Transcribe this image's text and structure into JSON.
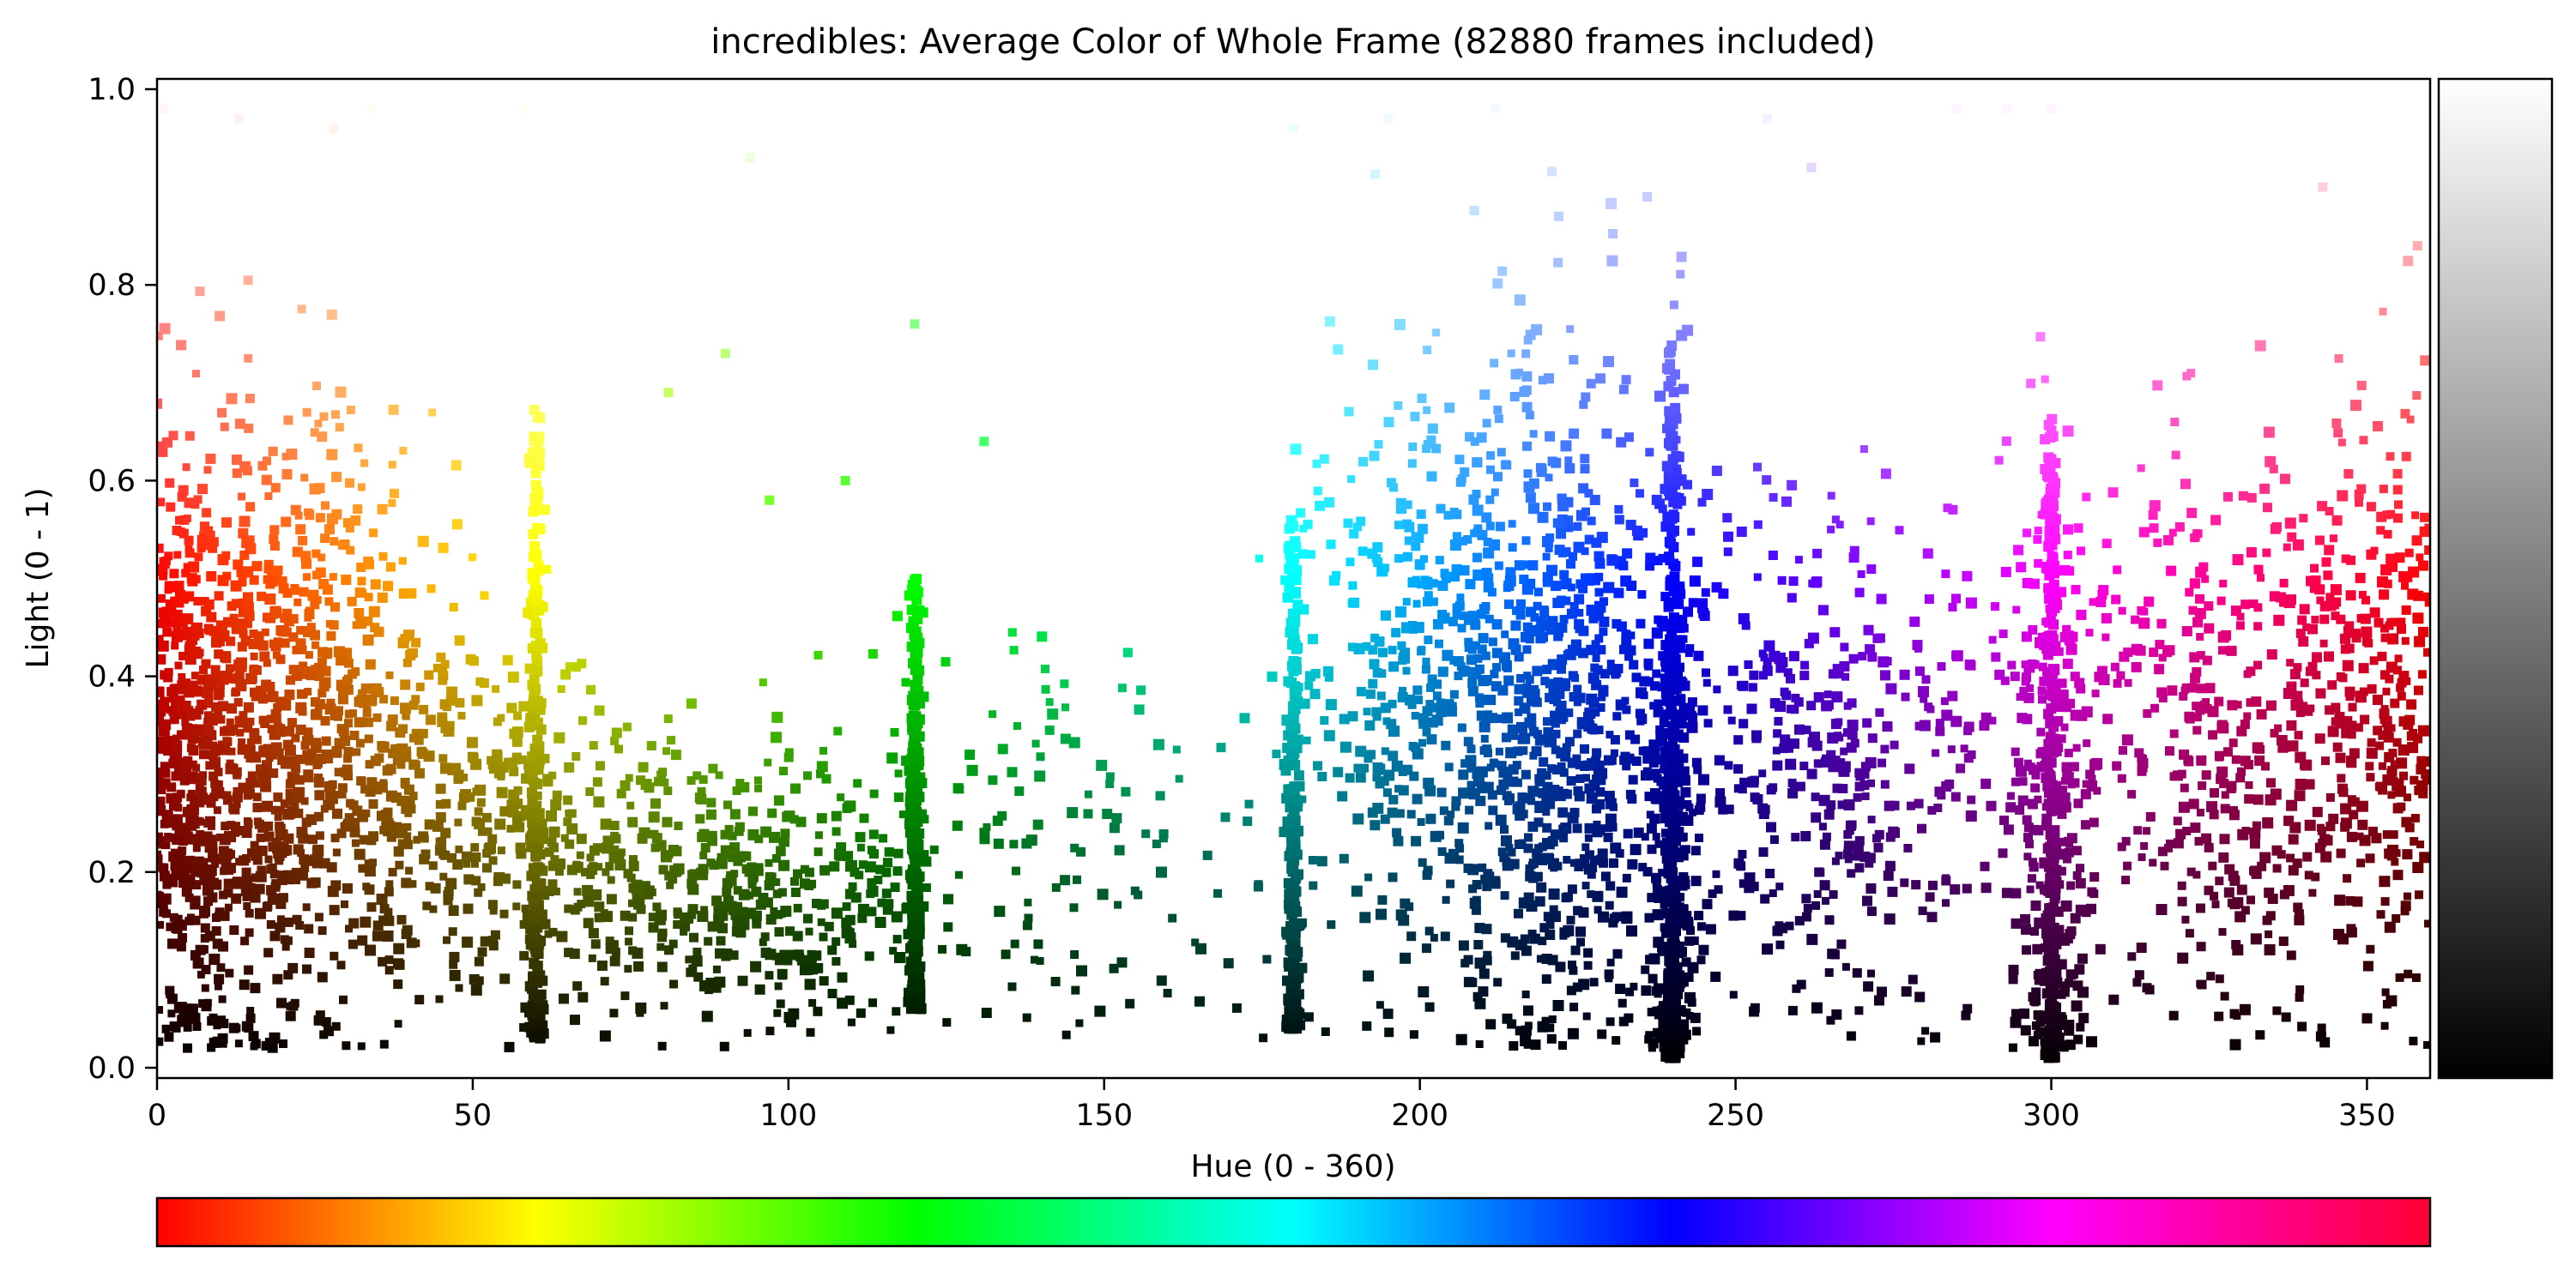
{
  "chart_data": {
    "type": "scatter",
    "title": "incredibles: Average Color of Whole Frame (82880 frames included)",
    "xlabel": "Hue (0 - 360)",
    "ylabel": "Light (0 - 1)",
    "xlim": [
      0,
      360
    ],
    "ylim": [
      0,
      1
    ],
    "xticks": [
      0,
      50,
      100,
      150,
      200,
      250,
      300,
      350
    ],
    "yticks": [
      0.0,
      0.2,
      0.4,
      0.6,
      0.8,
      1.0
    ],
    "ytick_labels": [
      "0.0",
      "0.2",
      "0.4",
      "0.6",
      "0.8",
      "1.0"
    ],
    "grid": false,
    "legend": "none",
    "color_encoding": "point color = average frame color (hue on x, lightness on y)",
    "side_colorbar": "lightness gradient black to white (no tick labels)",
    "bottom_colorbar": "hue spectrum 0 to 360 (no tick labels)",
    "density_clusters": [
      {
        "hue_center": 18,
        "hue_spread": 12,
        "light_center": 0.34,
        "light_spread": 0.16,
        "weight": 20
      },
      {
        "hue_center": 4,
        "hue_spread": 4,
        "light_center": 0.3,
        "light_spread": 0.16,
        "weight": 8
      },
      {
        "hue_center": 45,
        "hue_spread": 12,
        "light_center": 0.28,
        "light_spread": 0.09,
        "weight": 7
      },
      {
        "hue_center": 75,
        "hue_spread": 14,
        "light_center": 0.2,
        "light_spread": 0.07,
        "weight": 6
      },
      {
        "hue_center": 102,
        "hue_spread": 10,
        "light_center": 0.18,
        "light_spread": 0.07,
        "weight": 5
      },
      {
        "hue_center": 140,
        "hue_spread": 18,
        "light_center": 0.22,
        "light_spread": 0.1,
        "weight": 3
      },
      {
        "hue_center": 200,
        "hue_spread": 10,
        "light_center": 0.4,
        "light_spread": 0.15,
        "weight": 8
      },
      {
        "hue_center": 222,
        "hue_spread": 10,
        "light_center": 0.35,
        "light_spread": 0.17,
        "weight": 16
      },
      {
        "hue_center": 240,
        "hue_spread": 2,
        "light_center": 0.25,
        "light_spread": 0.2,
        "weight": 6
      },
      {
        "hue_center": 265,
        "hue_spread": 14,
        "light_center": 0.3,
        "light_spread": 0.13,
        "weight": 9
      },
      {
        "hue_center": 300,
        "hue_spread": 3,
        "light_center": 0.25,
        "light_spread": 0.18,
        "weight": 5
      },
      {
        "hue_center": 330,
        "hue_spread": 18,
        "light_center": 0.33,
        "light_spread": 0.14,
        "weight": 12
      },
      {
        "hue_center": 355,
        "hue_spread": 6,
        "light_center": 0.4,
        "light_spread": 0.16,
        "weight": 5
      }
    ],
    "vertical_streaks": [
      {
        "hue": 60,
        "light_min": 0.03,
        "light_max": 0.68
      },
      {
        "hue": 120,
        "light_min": 0.06,
        "light_max": 0.51
      },
      {
        "hue": 180,
        "light_min": 0.04,
        "light_max": 0.56
      },
      {
        "hue": 240,
        "light_min": 0.01,
        "light_max": 0.74
      },
      {
        "hue": 300,
        "light_min": 0.01,
        "light_max": 0.67
      }
    ],
    "outliers": [
      {
        "x": 13,
        "y": 0.97
      },
      {
        "x": 28,
        "y": 0.96
      },
      {
        "x": 34,
        "y": 0.98
      },
      {
        "x": 58,
        "y": 0.98
      },
      {
        "x": 94,
        "y": 0.93
      },
      {
        "x": 90,
        "y": 0.73
      },
      {
        "x": 81,
        "y": 0.69
      },
      {
        "x": 120,
        "y": 0.76
      },
      {
        "x": 131,
        "y": 0.64
      },
      {
        "x": 180,
        "y": 0.96
      },
      {
        "x": 195,
        "y": 0.97
      },
      {
        "x": 212,
        "y": 0.98
      },
      {
        "x": 222,
        "y": 0.87
      },
      {
        "x": 236,
        "y": 0.89
      },
      {
        "x": 255,
        "y": 0.97
      },
      {
        "x": 262,
        "y": 0.92
      },
      {
        "x": 285,
        "y": 0.98
      },
      {
        "x": 293,
        "y": 0.98
      },
      {
        "x": 300,
        "y": 0.98
      },
      {
        "x": 343,
        "y": 0.9
      },
      {
        "x": 358,
        "y": 0.84
      },
      {
        "x": 1,
        "y": 0.98
      },
      {
        "x": 97,
        "y": 0.58
      },
      {
        "x": 109,
        "y": 0.6
      }
    ]
  }
}
